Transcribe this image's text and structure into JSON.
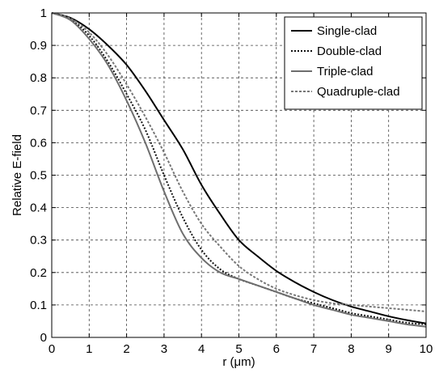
{
  "chart_data": {
    "type": "line",
    "title": "",
    "xlabel": "r (μm)",
    "ylabel": "Relative E-field",
    "xlim": [
      0,
      10
    ],
    "ylim": [
      0,
      1
    ],
    "xticks": [
      0,
      1,
      2,
      3,
      4,
      5,
      6,
      7,
      8,
      9,
      10
    ],
    "yticks": [
      0,
      0.1,
      0.2,
      0.3,
      0.4,
      0.5,
      0.6,
      0.7,
      0.8,
      0.9,
      1
    ],
    "xtick_labels": [
      "0",
      "1",
      "2",
      "3",
      "4",
      "5",
      "6",
      "7",
      "8",
      "9",
      "10"
    ],
    "ytick_labels": [
      "0",
      "0.1",
      "0.2",
      "0.3",
      "0.4",
      "0.5",
      "0.6",
      "0.7",
      "0.8",
      "0.9",
      "1"
    ],
    "grid": true,
    "legend_position": "top-right",
    "series": [
      {
        "name": "Single-clad",
        "color": "#000000",
        "dash": "solid",
        "x": [
          0,
          0.5,
          1,
          1.5,
          2,
          2.5,
          3,
          3.5,
          4,
          4.5,
          5,
          5.5,
          6,
          6.5,
          7,
          7.5,
          8,
          8.5,
          9,
          9.5,
          10
        ],
        "y": [
          1.0,
          0.985,
          0.95,
          0.9,
          0.84,
          0.76,
          0.67,
          0.58,
          0.47,
          0.38,
          0.3,
          0.25,
          0.205,
          0.17,
          0.14,
          0.115,
          0.095,
          0.08,
          0.065,
          0.053,
          0.043
        ]
      },
      {
        "name": "Double-clad",
        "color": "#111111",
        "dash": "dotted",
        "x": [
          0,
          0.5,
          1,
          1.5,
          2,
          2.5,
          3,
          3.5,
          4,
          4.5,
          5,
          5.5,
          6,
          6.5,
          7,
          7.5,
          8,
          8.5,
          9,
          9.5,
          10
        ],
        "y": [
          1.0,
          0.98,
          0.93,
          0.85,
          0.75,
          0.64,
          0.5,
          0.37,
          0.27,
          0.21,
          0.18,
          0.16,
          0.14,
          0.12,
          0.105,
          0.09,
          0.075,
          0.065,
          0.055,
          0.045,
          0.04
        ]
      },
      {
        "name": "Triple-clad",
        "color": "#6e6e6e",
        "dash": "solid",
        "x": [
          0,
          0.5,
          1,
          1.5,
          2,
          2.5,
          3,
          3.5,
          4,
          4.5,
          5,
          5.5,
          6,
          6.5,
          7,
          7.5,
          8,
          8.5,
          9,
          9.5,
          10
        ],
        "y": [
          1.0,
          0.978,
          0.92,
          0.84,
          0.73,
          0.6,
          0.45,
          0.32,
          0.245,
          0.2,
          0.18,
          0.16,
          0.14,
          0.12,
          0.1,
          0.085,
          0.07,
          0.06,
          0.05,
          0.04,
          0.033
        ]
      },
      {
        "name": "Quadruple-clad",
        "color": "#777777",
        "dash": "dashed",
        "x": [
          0,
          0.5,
          1,
          1.5,
          2,
          2.5,
          3,
          3.5,
          4,
          4.5,
          5,
          5.5,
          6,
          6.5,
          7,
          7.5,
          8,
          8.5,
          9,
          9.5,
          10
        ],
        "y": [
          1.0,
          0.983,
          0.94,
          0.87,
          0.78,
          0.68,
          0.57,
          0.45,
          0.35,
          0.28,
          0.22,
          0.18,
          0.15,
          0.13,
          0.115,
          0.105,
          0.1,
          0.095,
          0.09,
          0.085,
          0.08
        ]
      }
    ]
  }
}
